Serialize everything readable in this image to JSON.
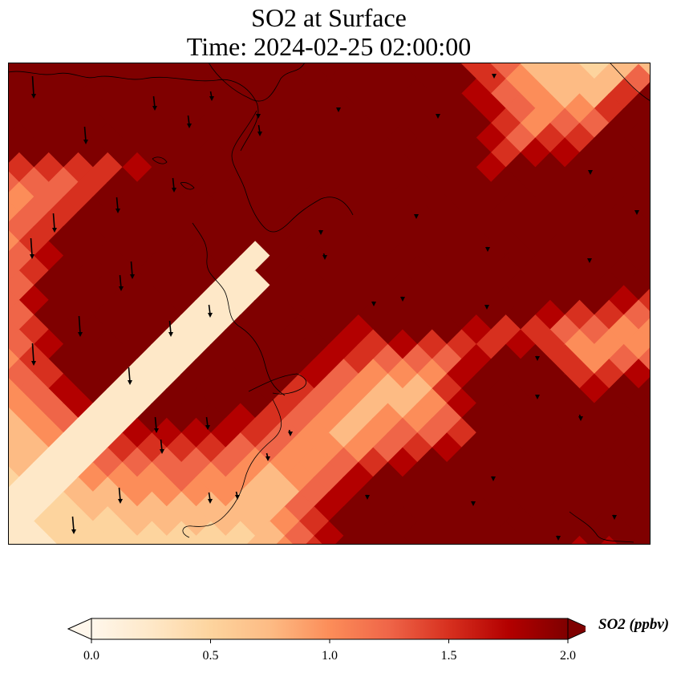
{
  "title": {
    "line1": "SO2 at Surface",
    "line2": "Time: 2024-02-25 02:00:00"
  },
  "colorbar": {
    "label": "SO2 (ppbv)",
    "min": 0.0,
    "max": 2.0,
    "extend": "both",
    "ticks": [
      "0.0",
      "0.5",
      "1.0",
      "1.5",
      "2.0"
    ],
    "colormap": "OrRd",
    "colors": [
      "#fff7ec",
      "#fee8c8",
      "#fdd49e",
      "#fdbb84",
      "#fc8d59",
      "#ef6548",
      "#d7301f",
      "#b30000",
      "#7f0000"
    ]
  },
  "map": {
    "field": "SO2 concentration at surface",
    "units": "ppbv",
    "features": [
      "coastlines",
      "wind-vectors"
    ],
    "hotspots": [
      {
        "name": "northwest plume",
        "value": 2.0
      },
      {
        "name": "central plume",
        "value": 2.0
      },
      {
        "name": "east plume",
        "value": 2.0
      },
      {
        "name": "southeast plume",
        "value": 2.0
      }
    ],
    "wind_direction": "southward"
  }
}
